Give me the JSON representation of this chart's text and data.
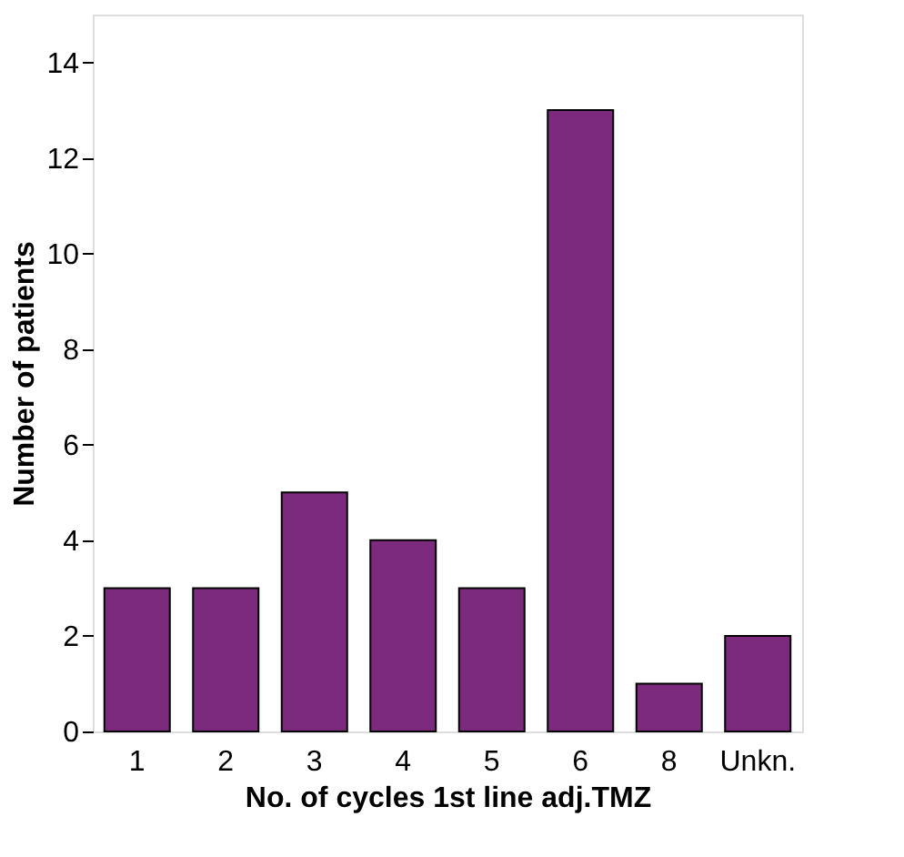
{
  "chart_data": {
    "type": "bar",
    "xlabel": "No. of cycles 1st line adj.TMZ",
    "ylabel": "Number of patients",
    "categories": [
      "1",
      "2",
      "3",
      "4",
      "5",
      "6",
      "8",
      "Unkn."
    ],
    "values": [
      3,
      3,
      5,
      4,
      3,
      13,
      1,
      2
    ],
    "color": "#7b2a7e",
    "ylim": [
      0,
      15
    ],
    "yticks": [
      0,
      2,
      4,
      6,
      8,
      10,
      12,
      14
    ],
    "grid": false
  }
}
